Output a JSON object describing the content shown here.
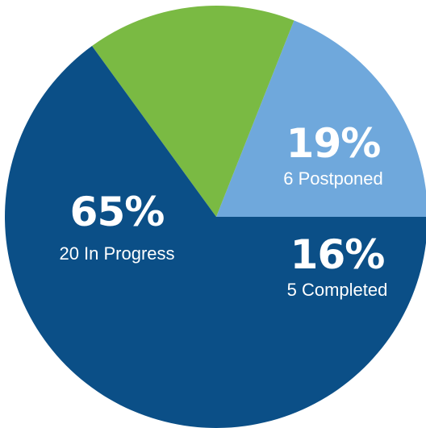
{
  "chart_data": {
    "type": "pie",
    "slices": [
      {
        "percent_label": "19%",
        "value": 19,
        "label": "6 Postponed",
        "count": 6,
        "color": "#6fa8dc"
      },
      {
        "percent_label": "16%",
        "value": 16,
        "label": "5 Completed",
        "count": 5,
        "color": "#7aba43"
      },
      {
        "percent_label": "65%",
        "value": 65,
        "label": "20 In Progress",
        "count": 20,
        "color": "#0b4f87"
      }
    ],
    "start_angle_deg": 0,
    "direction": "clockwise"
  }
}
